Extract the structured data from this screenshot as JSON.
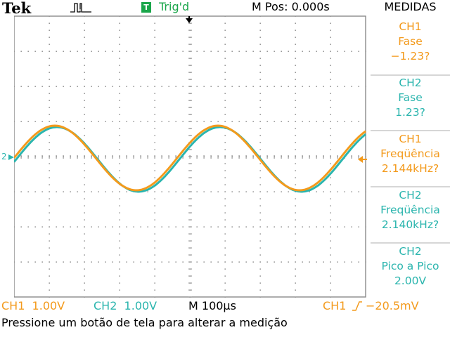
{
  "header": {
    "brand": "Tek",
    "acquisition_icon": "run-pulse-icon",
    "trigger_badge": "T",
    "trigger_status": "Trig'd",
    "horizontal_position": "M Pos: 0.000s"
  },
  "menu": {
    "title": "MEDIDAS",
    "items": [
      {
        "channel": "CH1",
        "measurement": "Fase",
        "value": "−1.23?"
      },
      {
        "channel": "CH2",
        "measurement": "Fase",
        "value": "1.23?"
      },
      {
        "channel": "CH1",
        "measurement": "Freqüência",
        "value": "2.144kHz?"
      },
      {
        "channel": "CH2",
        "measurement": "Freqüência",
        "value": "2.140kHz?"
      },
      {
        "channel": "CH2",
        "measurement": "Pico a Pico",
        "value": "2.00V"
      }
    ]
  },
  "display": {
    "ch2_ground_marker": "2",
    "ch1_color": "#f39a1c",
    "ch2_color": "#2bb5ae",
    "trigger_color": "#1aa64a"
  },
  "readout": {
    "ch1_scale": "CH1  1.00V",
    "ch2_scale": "CH2  1.00V",
    "timebase": "M 100µs",
    "trigger_source": "CH1",
    "trigger_slope_icon": "rising-edge-icon",
    "trigger_level": "−20.5mV"
  },
  "status": {
    "message": "Pressione um botão de tela para alterar a medição"
  }
}
